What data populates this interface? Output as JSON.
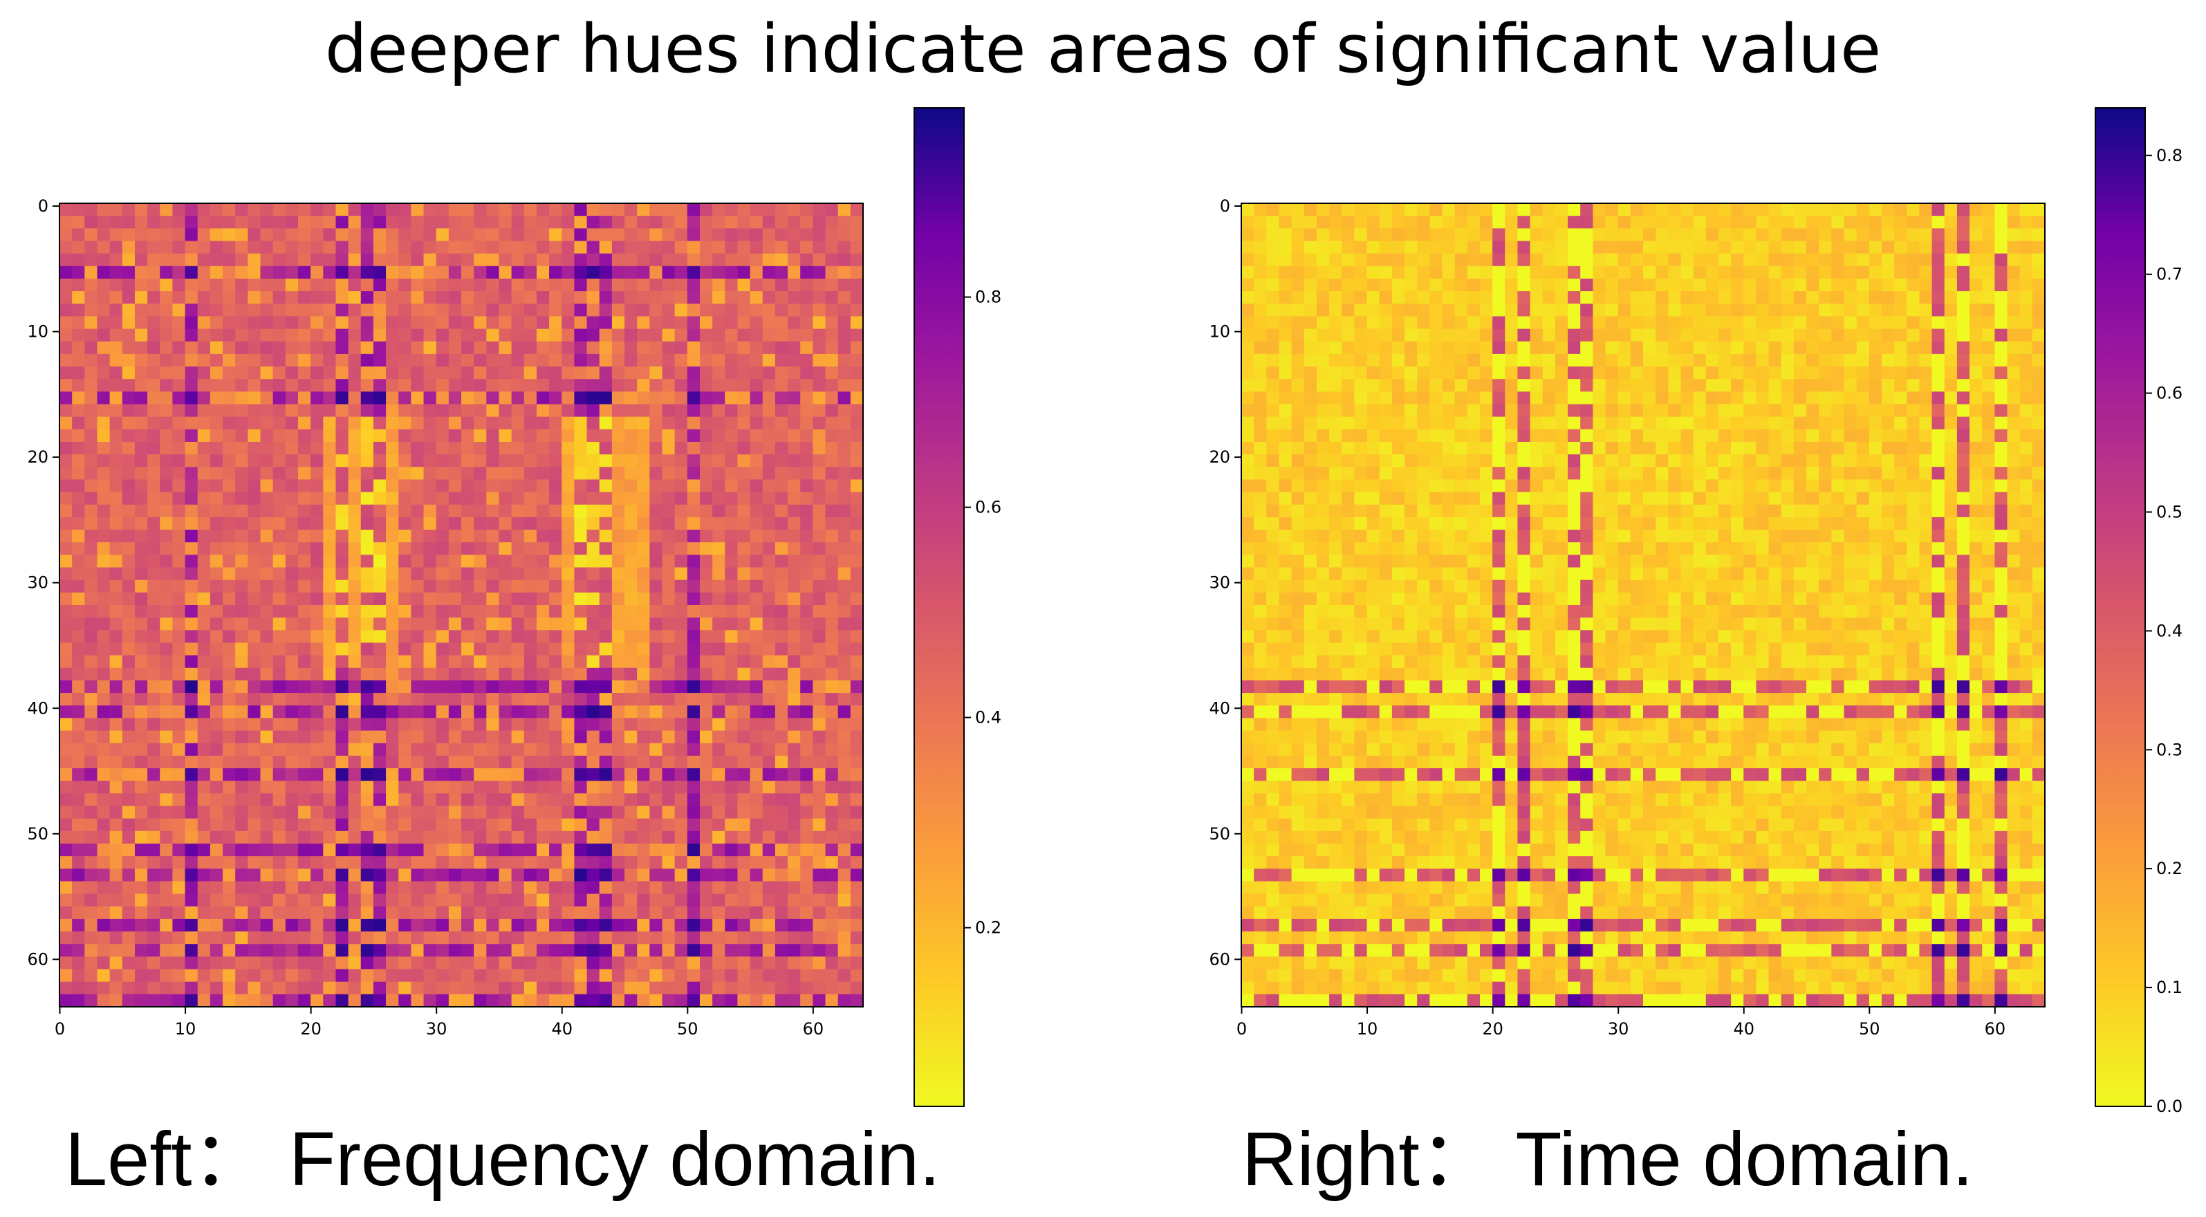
{
  "title": "deeper hues indicate areas of significant value",
  "captions": {
    "left": "Left： Frequency domain.",
    "right": "Right： Time domain."
  },
  "colormap": "plasma_r",
  "chart_data": [
    {
      "type": "heatmap",
      "name": "Frequency domain",
      "rows": 64,
      "cols": 64,
      "x_ticks": [
        0,
        10,
        20,
        30,
        40,
        50,
        60
      ],
      "y_ticks": [
        0,
        10,
        20,
        30,
        40,
        50,
        60
      ],
      "xlim": [
        0,
        63
      ],
      "ylim": [
        0,
        63
      ],
      "colorbar": {
        "min": 0.03,
        "max": 0.98,
        "ticks": [
          0.2,
          0.4,
          0.6,
          0.8
        ]
      },
      "base_value": 0.47,
      "strong_rows": [
        5,
        15,
        38,
        40,
        45,
        51,
        53,
        57,
        59,
        63
      ],
      "strong_cols": [
        10,
        22,
        24,
        25,
        41,
        42,
        43,
        50
      ],
      "light_bands": {
        "rows": [
          17,
          36
        ],
        "cols": [
          [
            21,
            26
          ],
          [
            40,
            46
          ]
        ]
      },
      "peak_value": 0.95,
      "low_value": 0.2
    },
    {
      "type": "heatmap",
      "name": "Time domain",
      "rows": 64,
      "cols": 64,
      "x_ticks": [
        0,
        10,
        20,
        30,
        40,
        50,
        60
      ],
      "y_ticks": [
        0,
        10,
        20,
        30,
        40,
        50,
        60
      ],
      "xlim": [
        0,
        63
      ],
      "ylim": [
        0,
        63
      ],
      "colorbar": {
        "min": 0.0,
        "max": 0.84,
        "ticks": [
          0.0,
          0.1,
          0.2,
          0.3,
          0.4,
          0.5,
          0.6,
          0.7,
          0.8
        ]
      },
      "base_value": 0.1,
      "strong_rows": [
        38,
        40,
        45,
        53,
        57,
        59,
        63
      ],
      "strong_cols": [
        20,
        22,
        26,
        27,
        55,
        57,
        60
      ],
      "light_bands": {
        "rows": [
          17,
          36
        ],
        "cols": [
          [
            8,
            28
          ],
          [
            30,
            40
          ]
        ]
      },
      "peak_value": 0.8,
      "low_value": 0.03
    }
  ]
}
